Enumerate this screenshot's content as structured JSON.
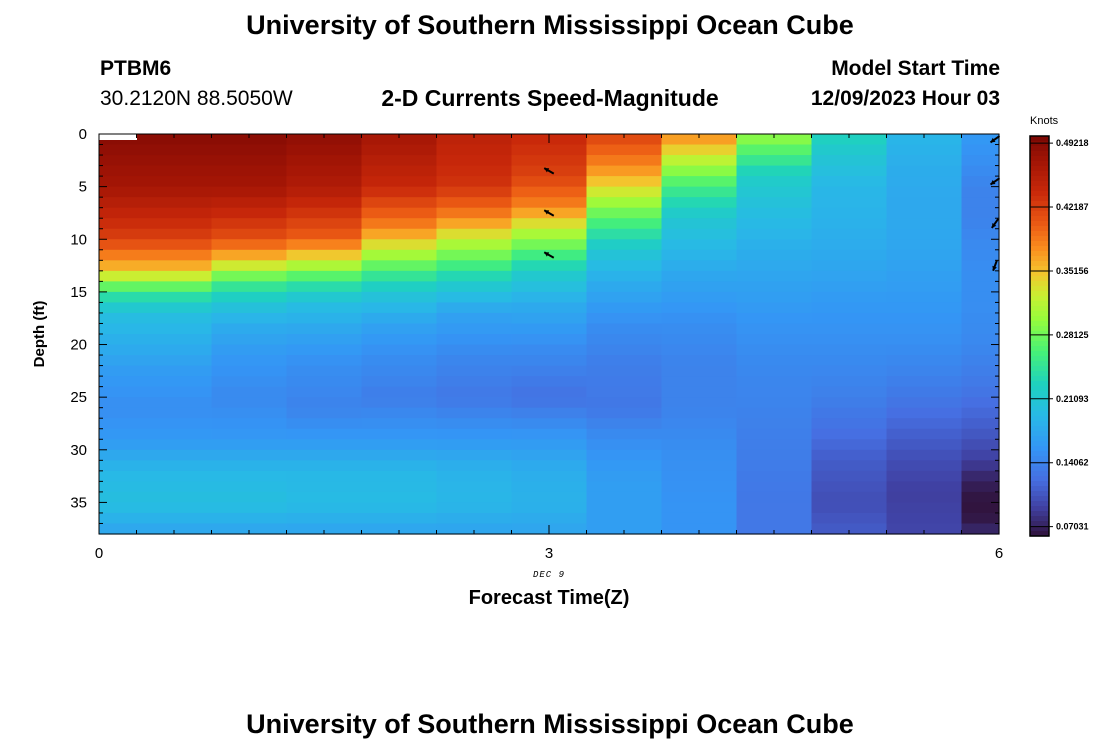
{
  "page": {
    "title_top": "University of Southern Mississippi Ocean Cube",
    "title_bottom": "University of Southern Mississippi Ocean Cube",
    "station_id": "PTBM6",
    "station_coords": "30.2120N  88.5050W",
    "plot_title": "2-D Currents Speed-Magnitude",
    "model_start_label": "Model Start Time",
    "model_start_value": "12/09/2023 Hour 03"
  },
  "chart_data": {
    "type": "heatmap",
    "title": "2-D Currents Speed-Magnitude",
    "xlabel": "Forecast Time(Z)",
    "ylabel": "Depth (ft)",
    "x_date_label": "DEC 9",
    "xlim": [
      0,
      6
    ],
    "ylim": [
      38,
      0
    ],
    "x_ticks": [
      0,
      3,
      6
    ],
    "y_ticks": [
      0,
      5,
      10,
      15,
      20,
      25,
      30,
      35
    ],
    "colorbar": {
      "label": "Knots",
      "min": 0.06,
      "max": 0.5,
      "ticks": [
        "0.07031",
        "0.14062",
        "0.21093",
        "0.28125",
        "0.35156",
        "0.42187",
        "0.49218"
      ],
      "tick_values": [
        0.07031,
        0.14062,
        0.21093,
        0.28125,
        0.35156,
        0.42187,
        0.49218
      ]
    },
    "x_columns": [
      0.5,
      1,
      1.5,
      2,
      2.5,
      3,
      3.5,
      4,
      4.5,
      5,
      5.5,
      6
    ],
    "column_profiles": [
      [
        [
          0,
          0.49
        ],
        [
          5,
          0.47
        ],
        [
          10,
          0.42
        ],
        [
          13,
          0.35
        ],
        [
          15,
          0.25
        ],
        [
          17,
          0.2
        ],
        [
          20,
          0.18
        ],
        [
          23,
          0.16
        ],
        [
          26,
          0.15
        ],
        [
          29,
          0.16
        ],
        [
          32,
          0.19
        ],
        [
          35,
          0.2
        ],
        [
          38,
          0.17
        ]
      ],
      [
        [
          0,
          0.49
        ],
        [
          5,
          0.47
        ],
        [
          10,
          0.41
        ],
        [
          12,
          0.35
        ],
        [
          14,
          0.26
        ],
        [
          16,
          0.21
        ],
        [
          18,
          0.18
        ],
        [
          21,
          0.16
        ],
        [
          25,
          0.145
        ],
        [
          29,
          0.16
        ],
        [
          32,
          0.19
        ],
        [
          35,
          0.2
        ],
        [
          38,
          0.17
        ]
      ],
      [
        [
          0,
          0.485
        ],
        [
          5,
          0.46
        ],
        [
          10,
          0.4
        ],
        [
          12,
          0.33
        ],
        [
          14,
          0.25
        ],
        [
          16,
          0.2
        ],
        [
          19,
          0.17
        ],
        [
          22,
          0.15
        ],
        [
          26,
          0.14
        ],
        [
          29,
          0.16
        ],
        [
          32,
          0.19
        ],
        [
          35,
          0.195
        ],
        [
          38,
          0.17
        ]
      ],
      [
        [
          0,
          0.47
        ],
        [
          5,
          0.44
        ],
        [
          9,
          0.38
        ],
        [
          11,
          0.32
        ],
        [
          13,
          0.26
        ],
        [
          15,
          0.21
        ],
        [
          18,
          0.17
        ],
        [
          21,
          0.15
        ],
        [
          25,
          0.135
        ],
        [
          29,
          0.16
        ],
        [
          32,
          0.19
        ],
        [
          35,
          0.195
        ],
        [
          38,
          0.17
        ]
      ],
      [
        [
          0,
          0.45
        ],
        [
          5,
          0.43
        ],
        [
          8,
          0.38
        ],
        [
          10,
          0.32
        ],
        [
          12,
          0.27
        ],
        [
          14,
          0.22
        ],
        [
          17,
          0.17
        ],
        [
          21,
          0.145
        ],
        [
          25,
          0.13
        ],
        [
          29,
          0.16
        ],
        [
          32,
          0.185
        ],
        [
          35,
          0.19
        ],
        [
          38,
          0.17
        ]
      ],
      [
        [
          0,
          0.44
        ],
        [
          4,
          0.42
        ],
        [
          7,
          0.38
        ],
        [
          9,
          0.32
        ],
        [
          11,
          0.27
        ],
        [
          13,
          0.22
        ],
        [
          16,
          0.18
        ],
        [
          20,
          0.15
        ],
        [
          25,
          0.125
        ],
        [
          29,
          0.16
        ],
        [
          32,
          0.18
        ],
        [
          35,
          0.185
        ],
        [
          38,
          0.17
        ]
      ],
      [
        [
          0,
          0.42
        ],
        [
          3,
          0.38
        ],
        [
          5,
          0.34
        ],
        [
          7,
          0.29
        ],
        [
          9,
          0.25
        ],
        [
          11,
          0.21
        ],
        [
          14,
          0.18
        ],
        [
          18,
          0.15
        ],
        [
          22,
          0.135
        ],
        [
          26,
          0.13
        ],
        [
          29,
          0.15
        ],
        [
          33,
          0.165
        ],
        [
          38,
          0.165
        ]
      ],
      [
        [
          0,
          0.38
        ],
        [
          2,
          0.33
        ],
        [
          4,
          0.28
        ],
        [
          6,
          0.24
        ],
        [
          8,
          0.21
        ],
        [
          11,
          0.19
        ],
        [
          14,
          0.17
        ],
        [
          18,
          0.15
        ],
        [
          22,
          0.14
        ],
        [
          26,
          0.14
        ],
        [
          30,
          0.15
        ],
        [
          35,
          0.155
        ],
        [
          38,
          0.155
        ]
      ],
      [
        [
          0,
          0.3
        ],
        [
          2,
          0.26
        ],
        [
          4,
          0.22
        ],
        [
          7,
          0.2
        ],
        [
          10,
          0.185
        ],
        [
          14,
          0.17
        ],
        [
          18,
          0.155
        ],
        [
          22,
          0.145
        ],
        [
          26,
          0.14
        ],
        [
          30,
          0.135
        ],
        [
          35,
          0.13
        ],
        [
          38,
          0.13
        ]
      ],
      [
        [
          0,
          0.23
        ],
        [
          2,
          0.21
        ],
        [
          5,
          0.19
        ],
        [
          8,
          0.185
        ],
        [
          12,
          0.175
        ],
        [
          16,
          0.16
        ],
        [
          20,
          0.15
        ],
        [
          24,
          0.14
        ],
        [
          28,
          0.125
        ],
        [
          31,
          0.11
        ],
        [
          35,
          0.1
        ],
        [
          38,
          0.11
        ]
      ],
      [
        [
          0,
          0.19
        ],
        [
          3,
          0.18
        ],
        [
          6,
          0.175
        ],
        [
          9,
          0.175
        ],
        [
          12,
          0.17
        ],
        [
          16,
          0.16
        ],
        [
          20,
          0.15
        ],
        [
          24,
          0.135
        ],
        [
          28,
          0.115
        ],
        [
          31,
          0.1
        ],
        [
          34,
          0.09
        ],
        [
          38,
          0.095
        ]
      ],
      [
        [
          0,
          0.16
        ],
        [
          3,
          0.15
        ],
        [
          5,
          0.14
        ],
        [
          8,
          0.14
        ],
        [
          10,
          0.145
        ],
        [
          13,
          0.15
        ],
        [
          16,
          0.15
        ],
        [
          20,
          0.145
        ],
        [
          24,
          0.13
        ],
        [
          28,
          0.11
        ],
        [
          31,
          0.09
        ],
        [
          33,
          0.07
        ],
        [
          35,
          0.06
        ],
        [
          37,
          0.065
        ],
        [
          38,
          0.08
        ]
      ]
    ],
    "vectors": [
      {
        "x": 3,
        "depth": 3.5,
        "angle_deg": 150
      },
      {
        "x": 3,
        "depth": 7.5,
        "angle_deg": 150
      },
      {
        "x": 3,
        "depth": 11.5,
        "angle_deg": 150
      },
      {
        "x": 6,
        "depth": 0.5,
        "angle_deg": 215
      },
      {
        "x": 6,
        "depth": 4.5,
        "angle_deg": 215
      },
      {
        "x": 6,
        "depth": 8.5,
        "angle_deg": 235
      },
      {
        "x": 6,
        "depth": 12.5,
        "angle_deg": 250
      }
    ]
  }
}
